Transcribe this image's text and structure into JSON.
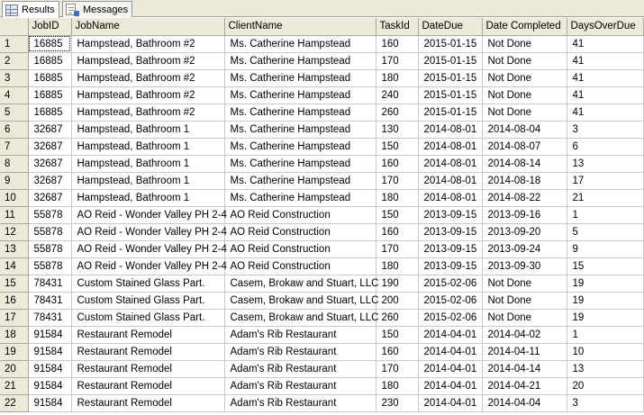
{
  "tabs": [
    {
      "label": "Results",
      "active": true,
      "icon": "grid-icon"
    },
    {
      "label": "Messages",
      "active": false,
      "icon": "messages-icon"
    }
  ],
  "columns": [
    "JobID",
    "JobName",
    "ClientName",
    "TaskId",
    "DateDue",
    "Date Completed",
    "DaysOverDue"
  ],
  "rows": [
    [
      "1",
      "16885",
      "Hampstead, Bathroom #2",
      "Ms. Catherine Hampstead",
      "160",
      "2015-01-15",
      "Not Done",
      "41"
    ],
    [
      "2",
      "16885",
      "Hampstead, Bathroom #2",
      "Ms. Catherine Hampstead",
      "170",
      "2015-01-15",
      "Not Done",
      "41"
    ],
    [
      "3",
      "16885",
      "Hampstead, Bathroom #2",
      "Ms. Catherine Hampstead",
      "180",
      "2015-01-15",
      "Not Done",
      "41"
    ],
    [
      "4",
      "16885",
      "Hampstead, Bathroom #2",
      "Ms. Catherine Hampstead",
      "240",
      "2015-01-15",
      "Not Done",
      "41"
    ],
    [
      "5",
      "16885",
      "Hampstead, Bathroom #2",
      "Ms. Catherine Hampstead",
      "260",
      "2015-01-15",
      "Not Done",
      "41"
    ],
    [
      "6",
      "32687",
      "Hampstead, Bathroom 1",
      "Ms. Catherine Hampstead",
      "130",
      "2014-08-01",
      "2014-08-04",
      "3"
    ],
    [
      "7",
      "32687",
      "Hampstead, Bathroom 1",
      "Ms. Catherine Hampstead",
      "150",
      "2014-08-01",
      "2014-08-07",
      "6"
    ],
    [
      "8",
      "32687",
      "Hampstead, Bathroom 1",
      "Ms. Catherine Hampstead",
      "160",
      "2014-08-01",
      "2014-08-14",
      "13"
    ],
    [
      "9",
      "32687",
      "Hampstead, Bathroom 1",
      "Ms. Catherine Hampstead",
      "170",
      "2014-08-01",
      "2014-08-18",
      "17"
    ],
    [
      "10",
      "32687",
      "Hampstead, Bathroom 1",
      "Ms. Catherine Hampstead",
      "180",
      "2014-08-01",
      "2014-08-22",
      "21"
    ],
    [
      "11",
      "55878",
      "AO Reid - Wonder Valley PH 2-4",
      "AO Reid Construction",
      "150",
      "2013-09-15",
      "2013-09-16",
      "1"
    ],
    [
      "12",
      "55878",
      "AO Reid - Wonder Valley PH 2-4",
      "AO Reid Construction",
      "160",
      "2013-09-15",
      "2013-09-20",
      "5"
    ],
    [
      "13",
      "55878",
      "AO Reid - Wonder Valley PH 2-4",
      "AO Reid Construction",
      "170",
      "2013-09-15",
      "2013-09-24",
      "9"
    ],
    [
      "14",
      "55878",
      "AO Reid - Wonder Valley PH 2-4",
      "AO Reid Construction",
      "180",
      "2013-09-15",
      "2013-09-30",
      "15"
    ],
    [
      "15",
      "78431",
      "Custom Stained Glass Part.",
      "Casem, Brokaw and Stuart, LLC",
      "190",
      "2015-02-06",
      "Not Done",
      "19"
    ],
    [
      "16",
      "78431",
      "Custom Stained Glass Part.",
      "Casem, Brokaw and Stuart, LLC",
      "200",
      "2015-02-06",
      "Not Done",
      "19"
    ],
    [
      "17",
      "78431",
      "Custom Stained Glass Part.",
      "Casem, Brokaw and Stuart, LLC",
      "260",
      "2015-02-06",
      "Not Done",
      "19"
    ],
    [
      "18",
      "91584",
      "Restaurant Remodel",
      "Adam's Rib Restaurant",
      "150",
      "2014-04-01",
      "2014-04-02",
      "1"
    ],
    [
      "19",
      "91584",
      "Restaurant Remodel",
      "Adam's Rib Restaurant",
      "160",
      "2014-04-01",
      "2014-04-11",
      "10"
    ],
    [
      "20",
      "91584",
      "Restaurant Remodel",
      "Adam's Rib Restaurant",
      "170",
      "2014-04-01",
      "2014-04-14",
      "13"
    ],
    [
      "21",
      "91584",
      "Restaurant Remodel",
      "Adam's Rib Restaurant",
      "180",
      "2014-04-01",
      "2014-04-21",
      "20"
    ],
    [
      "22",
      "91584",
      "Restaurant Remodel",
      "Adam's Rib Restaurant",
      "230",
      "2014-04-01",
      "2014-04-04",
      "3"
    ]
  ]
}
